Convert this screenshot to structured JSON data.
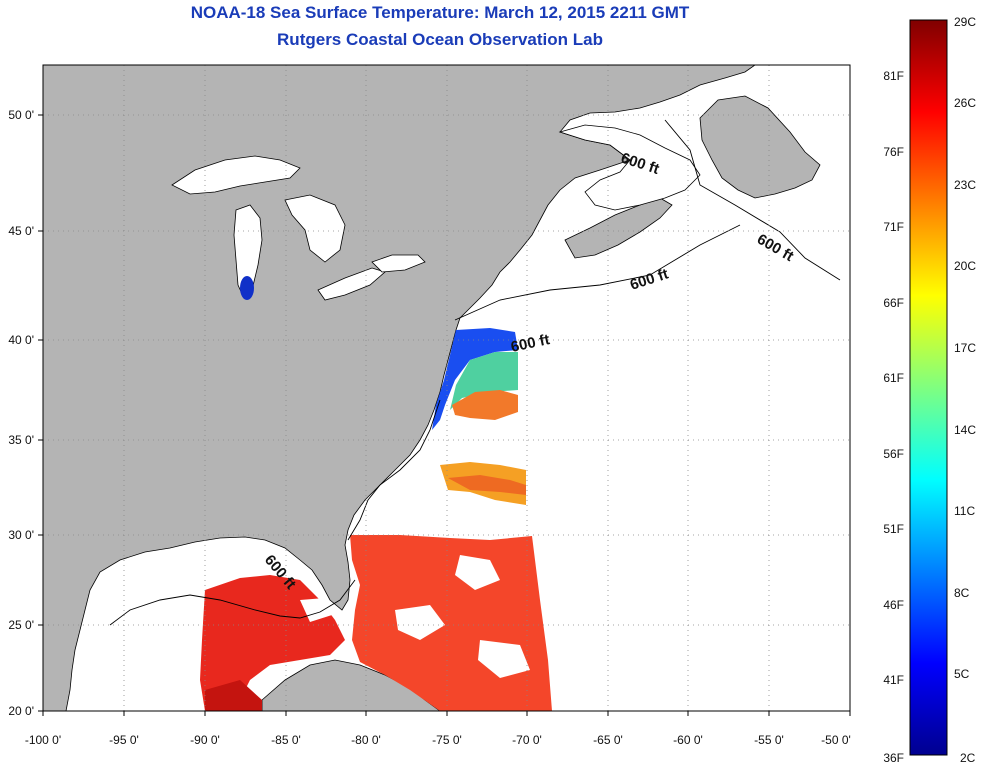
{
  "title": {
    "line1": "NOAA-18 Sea Surface Temperature:  March 12, 2015 2211 GMT",
    "line2": "Rutgers Coastal Ocean Observation Lab"
  },
  "map": {
    "lon_range": [
      -100,
      -50
    ],
    "lat_range": [
      20,
      52.5
    ],
    "lon_ticks": [
      "-100 0'",
      "-95 0'",
      "-90 0'",
      "-85 0'",
      "-80 0'",
      "-75 0'",
      "-70 0'",
      "-65 0'",
      "-60 0'",
      "-55 0'",
      "-50 0'"
    ],
    "lat_ticks": [
      "50 0'",
      "45 0'",
      "40 0'",
      "35 0'",
      "30 0'",
      "25 0'",
      "20 0'"
    ],
    "land_color": "#b4b4b4",
    "ocean_color": "#ffffff",
    "grid": "dotted",
    "contour_label": "600 ft",
    "contour_label_count": 6
  },
  "colorbar": {
    "celsius_labels": [
      "29C",
      "26C",
      "23C",
      "20C",
      "17C",
      "14C",
      "11C",
      "8C",
      "5C",
      "2C"
    ],
    "fahrenheit_labels": [
      "81F",
      "76F",
      "71F",
      "66F",
      "61F",
      "56F",
      "51F",
      "46F",
      "41F",
      "36F"
    ],
    "colormap": "jet",
    "range_c": [
      2,
      29
    ]
  }
}
